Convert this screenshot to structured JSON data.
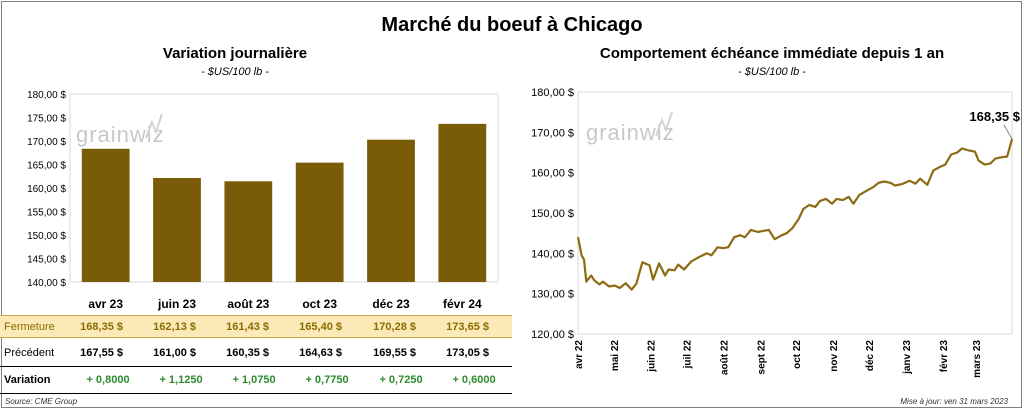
{
  "title": "Marché du boeuf à Chicago",
  "brand": "grainwiz",
  "left_panel": {
    "title": "Variation  journalière",
    "subtitle": "- $US/100 lb -"
  },
  "right_panel": {
    "title": "Comportement  échéance immédiate depuis 1 an",
    "subtitle": "- $US/100 lb -",
    "last_label": "168,35 $"
  },
  "table": {
    "fermeture_label": "Fermeture",
    "precedent_label": "Précédent",
    "variation_label": "Variation",
    "fermeture": [
      "168,35  $",
      "162,13  $",
      "161,43  $",
      "165,40  $",
      "170,28  $",
      "173,65  $"
    ],
    "precedent": [
      "167,55  $",
      "161,00  $",
      "160,35  $",
      "164,63  $",
      "169,55  $",
      "173,05  $"
    ],
    "variation": [
      "+ 0,8000",
      "+ 1,1250",
      "+ 1,0750",
      "+ 0,7750",
      "+ 0,7250",
      "+ 0,6000"
    ]
  },
  "footer": {
    "source": "Source: CME Group",
    "updated": "Mise à jour: ven 31 mars 2023"
  },
  "colors": {
    "bar": "#7a5c08",
    "line": "#8c6b13",
    "fermeture_bg": "#fbe9b7",
    "variation": "#2e8b2e"
  },
  "chart_data": [
    {
      "type": "bar",
      "categories": [
        "avr 23",
        "juin 23",
        "août 23",
        "oct 23",
        "déc 23",
        "févr 24"
      ],
      "values": [
        168.35,
        162.13,
        161.43,
        165.4,
        170.28,
        173.65
      ],
      "ylim": [
        140,
        180
      ],
      "yticks": [
        140,
        145,
        150,
        155,
        160,
        165,
        170,
        175,
        180
      ],
      "ytick_labels": [
        "140,00 $",
        "145,00 $",
        "150,00 $",
        "155,00 $",
        "160,00 $",
        "165,00 $",
        "170,00 $",
        "175,00 $",
        "180,00 $"
      ],
      "grid": false
    },
    {
      "type": "line",
      "ylim": [
        120,
        180
      ],
      "yticks": [
        120,
        130,
        140,
        150,
        160,
        170,
        180
      ],
      "ytick_labels": [
        "120,00 $",
        "130,00 $",
        "140,00 $",
        "150,00 $",
        "160,00 $",
        "170,00 $",
        "180,00 $"
      ],
      "xtick_labels": [
        "avr 22",
        "mai 22",
        "juin 22",
        "juil 22",
        "août 22",
        "sept 22",
        "oct 22",
        "nov 22",
        "déc 22",
        "janv 23",
        "févr 23",
        "mars 23"
      ],
      "x": [
        "2022-04-01",
        "2022-04-04",
        "2022-04-06",
        "2022-04-08",
        "2022-04-12",
        "2022-04-15",
        "2022-04-19",
        "2022-04-22",
        "2022-04-27",
        "2022-05-02",
        "2022-05-06",
        "2022-05-11",
        "2022-05-16",
        "2022-05-20",
        "2022-05-25",
        "2022-05-31",
        "2022-06-03",
        "2022-06-08",
        "2022-06-13",
        "2022-06-16",
        "2022-06-21",
        "2022-06-24",
        "2022-06-29",
        "2022-07-05",
        "2022-07-08",
        "2022-07-13",
        "2022-07-18",
        "2022-07-22",
        "2022-07-27",
        "2022-08-01",
        "2022-08-05",
        "2022-08-10",
        "2022-08-15",
        "2022-08-19",
        "2022-08-24",
        "2022-08-30",
        "2022-09-02",
        "2022-09-08",
        "2022-09-13",
        "2022-09-19",
        "2022-09-23",
        "2022-09-28",
        "2022-10-03",
        "2022-10-07",
        "2022-10-12",
        "2022-10-17",
        "2022-10-21",
        "2022-10-26",
        "2022-10-31",
        "2022-11-04",
        "2022-11-09",
        "2022-11-14",
        "2022-11-18",
        "2022-11-23",
        "2022-11-29",
        "2022-12-05",
        "2022-12-09",
        "2022-12-14",
        "2022-12-19",
        "2022-12-23",
        "2022-12-29",
        "2023-01-04",
        "2023-01-09",
        "2023-01-13",
        "2023-01-19",
        "2023-01-24",
        "2023-01-30",
        "2023-02-03",
        "2023-02-08",
        "2023-02-13",
        "2023-02-17",
        "2023-02-23",
        "2023-02-28",
        "2023-03-03",
        "2023-03-08",
        "2023-03-13",
        "2023-03-17",
        "2023-03-22",
        "2023-03-27",
        "2023-03-31"
      ],
      "y": [
        144.0,
        139.5,
        138.5,
        133.0,
        134.5,
        133.2,
        132.3,
        133.0,
        131.8,
        132.0,
        131.4,
        132.6,
        131.0,
        132.5,
        137.8,
        137.0,
        133.5,
        137.5,
        134.5,
        136.0,
        135.8,
        137.2,
        136.0,
        138.0,
        138.5,
        139.3,
        140.0,
        139.5,
        141.5,
        141.3,
        141.5,
        144.0,
        144.5,
        144.0,
        145.8,
        145.3,
        145.5,
        145.8,
        143.5,
        144.5,
        145.0,
        146.3,
        148.5,
        151.0,
        152.0,
        151.5,
        153.0,
        153.5,
        152.3,
        153.5,
        153.2,
        154.0,
        152.3,
        154.5,
        155.5,
        156.5,
        157.5,
        157.8,
        157.5,
        156.8,
        157.2,
        158.0,
        157.3,
        158.5,
        157.0,
        160.5,
        161.5,
        162.0,
        164.5,
        165.0,
        166.0,
        165.5,
        165.2,
        163.0,
        162.0,
        162.3,
        163.5,
        163.8,
        164.0,
        168.35
      ]
    }
  ]
}
